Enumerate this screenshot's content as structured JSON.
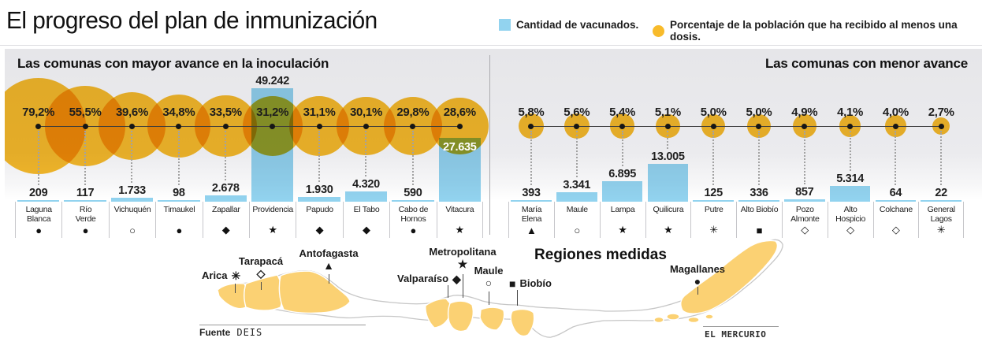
{
  "header": {
    "title": "El progreso del plan de inmunización",
    "legend": [
      {
        "label": "Cantidad de vacunados.",
        "shape": "square",
        "color": "#92D3EF"
      },
      {
        "label": "Porcentaje de la población que ha recibido al menos una dosis.",
        "shape": "circle",
        "color": "#F8BB2B"
      }
    ]
  },
  "colors": {
    "bubble_yellow": "#F8BB2B",
    "bar_blue": "#92D3EF",
    "map_region_yellow": "#FBD173"
  },
  "panels": [
    {
      "title": "Las comunas con mayor avance en la inoculación",
      "columns": [
        {
          "name": "Laguna Blanca",
          "name_lines": [
            "Laguna",
            "Blanca"
          ],
          "pct": "79,2%",
          "pct_value": 79.2,
          "count": "209",
          "count_value": 209,
          "symbol": "●"
        },
        {
          "name": "Río Verde",
          "name_lines": [
            "Río",
            "Verde"
          ],
          "pct": "55,5%",
          "pct_value": 55.5,
          "count": "117",
          "count_value": 117,
          "symbol": "●"
        },
        {
          "name": "Vichuquén",
          "name_lines": [
            "Vichuquén"
          ],
          "pct": "39,6%",
          "pct_value": 39.6,
          "count": "1.733",
          "count_value": 1733,
          "symbol": "○"
        },
        {
          "name": "Timaukel",
          "name_lines": [
            "Timaukel"
          ],
          "pct": "34,8%",
          "pct_value": 34.8,
          "count": "98",
          "count_value": 98,
          "symbol": "●"
        },
        {
          "name": "Zapallar",
          "name_lines": [
            "Zapallar"
          ],
          "pct": "33,5%",
          "pct_value": 33.5,
          "count": "2.678",
          "count_value": 2678,
          "symbol": "◆"
        },
        {
          "name": "Providencia",
          "name_lines": [
            "Providencia"
          ],
          "pct": "31,2%",
          "pct_value": 31.2,
          "count": "49.242",
          "count_value": 49242,
          "symbol": "★"
        },
        {
          "name": "Papudo",
          "name_lines": [
            "Papudo"
          ],
          "pct": "31,1%",
          "pct_value": 31.1,
          "count": "1.930",
          "count_value": 1930,
          "symbol": "◆"
        },
        {
          "name": "El Tabo",
          "name_lines": [
            "El Tabo"
          ],
          "pct": "30,1%",
          "pct_value": 30.1,
          "count": "4.320",
          "count_value": 4320,
          "symbol": "◆"
        },
        {
          "name": "Cabo de Hornos",
          "name_lines": [
            "Cabo de",
            "Hornos"
          ],
          "pct": "29,8%",
          "pct_value": 29.8,
          "count": "590",
          "count_value": 590,
          "symbol": "●"
        },
        {
          "name": "Vitacura",
          "name_lines": [
            "Vitacura"
          ],
          "pct": "28,6%",
          "pct_value": 28.6,
          "count": "27.635",
          "count_value": 27635,
          "symbol": "★"
        }
      ]
    },
    {
      "title": "Las comunas con menor avance",
      "columns": [
        {
          "name": "María Elena",
          "name_lines": [
            "María",
            "Elena"
          ],
          "pct": "5,8%",
          "pct_value": 5.8,
          "count": "393",
          "count_value": 393,
          "symbol": "▲"
        },
        {
          "name": "Maule",
          "name_lines": [
            "Maule"
          ],
          "pct": "5,6%",
          "pct_value": 5.6,
          "count": "3.341",
          "count_value": 3341,
          "symbol": "○"
        },
        {
          "name": "Lampa",
          "name_lines": [
            "Lampa"
          ],
          "pct": "5,4%",
          "pct_value": 5.4,
          "count": "6.895",
          "count_value": 6895,
          "symbol": "★"
        },
        {
          "name": "Quilicura",
          "name_lines": [
            "Quilicura"
          ],
          "pct": "5,1%",
          "pct_value": 5.1,
          "count": "13.005",
          "count_value": 13005,
          "symbol": "★"
        },
        {
          "name": "Putre",
          "name_lines": [
            "Putre"
          ],
          "pct": "5,0%",
          "pct_value": 5.0,
          "count": "125",
          "count_value": 125,
          "symbol": "✳"
        },
        {
          "name": "Alto Biobío",
          "name_lines": [
            "Alto Biobío"
          ],
          "pct": "5,0%",
          "pct_value": 5.0,
          "count": "336",
          "count_value": 336,
          "symbol": "■"
        },
        {
          "name": "Pozo Almonte",
          "name_lines": [
            "Pozo",
            "Almonte"
          ],
          "pct": "4,9%",
          "pct_value": 4.9,
          "count": "857",
          "count_value": 857,
          "symbol": "◇"
        },
        {
          "name": "Alto Hospicio",
          "name_lines": [
            "Alto",
            "Hospicio"
          ],
          "pct": "4,1%",
          "pct_value": 4.1,
          "count": "5.314",
          "count_value": 5314,
          "symbol": "◇"
        },
        {
          "name": "Colchane",
          "name_lines": [
            "Colchane"
          ],
          "pct": "4,0%",
          "pct_value": 4.0,
          "count": "64",
          "count_value": 64,
          "symbol": "◇"
        },
        {
          "name": "General Lagos",
          "name_lines": [
            "General",
            "Lagos"
          ],
          "pct": "2,7%",
          "pct_value": 2.7,
          "count": "22",
          "count_value": 22,
          "symbol": "✳"
        }
      ]
    }
  ],
  "map": {
    "title": "Regiones medidas",
    "regions": [
      {
        "name": "Arica",
        "symbol": "✳"
      },
      {
        "name": "Tarapacá",
        "symbol": "◇"
      },
      {
        "name": "Antofagasta",
        "symbol": "▲"
      },
      {
        "name": "Valparaíso",
        "symbol": "◆"
      },
      {
        "name": "Metropolitana",
        "symbol": "★"
      },
      {
        "name": "Maule",
        "symbol": "○"
      },
      {
        "name": "Biobío",
        "symbol": "■"
      },
      {
        "name": "Magallanes",
        "symbol": "●"
      }
    ]
  },
  "footer": {
    "source_label": "Fuente",
    "source_value": "DEIS",
    "credit": "EL MERCURIO"
  },
  "chart_data": [
    {
      "type": "bar",
      "title": "Las comunas con mayor avance en la inoculación",
      "categories": [
        "Laguna Blanca",
        "Río Verde",
        "Vichuquén",
        "Timaukel",
        "Zapallar",
        "Providencia",
        "Papudo",
        "El Tabo",
        "Cabo de Hornos",
        "Vitacura"
      ],
      "series": [
        {
          "name": "Cantidad de vacunados",
          "values": [
            209,
            117,
            1733,
            98,
            2678,
            49242,
            1930,
            4320,
            590,
            27635
          ]
        },
        {
          "name": "Porcentaje de la población que ha recibido al menos una dosis",
          "unit": "%",
          "values": [
            79.2,
            55.5,
            39.6,
            34.8,
            33.5,
            31.2,
            31.1,
            30.1,
            29.8,
            28.6
          ]
        }
      ],
      "region_symbols": [
        "●",
        "●",
        "○",
        "●",
        "◆",
        "★",
        "◆",
        "◆",
        "●",
        "★"
      ],
      "legend_position": "top",
      "grid": false,
      "note": "percentages drawn as yellow bubbles with radius proportional to sqrt(percent); counts drawn as light blue bars"
    },
    {
      "type": "bar",
      "title": "Las comunas con menor avance",
      "categories": [
        "María Elena",
        "Maule",
        "Lampa",
        "Quilicura",
        "Putre",
        "Alto Biobío",
        "Pozo Almonte",
        "Alto Hospicio",
        "Colchane",
        "General Lagos"
      ],
      "series": [
        {
          "name": "Cantidad de vacunados",
          "values": [
            393,
            3341,
            6895,
            13005,
            125,
            336,
            857,
            5314,
            64,
            22
          ]
        },
        {
          "name": "Porcentaje de la población que ha recibido al menos una dosis",
          "unit": "%",
          "values": [
            5.8,
            5.6,
            5.4,
            5.1,
            5.0,
            5.0,
            4.9,
            4.1,
            4.0,
            2.7
          ]
        }
      ],
      "region_symbols": [
        "▲",
        "○",
        "★",
        "★",
        "✳",
        "■",
        "◇",
        "◇",
        "◇",
        "✳"
      ],
      "legend_position": "top",
      "grid": false,
      "note": "percentages drawn as yellow bubbles with radius proportional to sqrt(percent); counts drawn as light blue bars"
    }
  ]
}
